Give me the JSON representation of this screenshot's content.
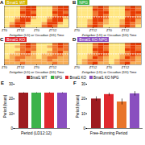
{
  "chart_data": [
    {
      "type": "heatmap",
      "panel_label": "A",
      "title": "Bmal1 WT",
      "color": "#d4b400",
      "xlabel": "Zeitgeber (LD) or Circadian (DD) Time",
      "bins": [
        0,
        4,
        8,
        12,
        16,
        20,
        24,
        28,
        32,
        36,
        40,
        44,
        48
      ],
      "xlim": [
        0,
        48
      ],
      "ylim": [
        0,
        8
      ],
      "dd_start": 4,
      "tick_labels": "x",
      "xticks": [
        {
          "value": 0,
          "label": "ZT0"
        },
        {
          "value": 12,
          "label": "ZT12"
        },
        {
          "value": 24,
          "label": "ZT0"
        },
        {
          "value": 36,
          "label": "ZT12"
        }
      ],
      "cells": [
        [
          0,
          0,
          0,
          2,
          3,
          3,
          0,
          0,
          0,
          2,
          3,
          3
        ],
        [
          0,
          0,
          0,
          2,
          3,
          3,
          0,
          0,
          0,
          2,
          3,
          3
        ],
        [
          0,
          0,
          0,
          3,
          3,
          2,
          0,
          0,
          0,
          3,
          3,
          2
        ],
        [
          0,
          0,
          0,
          2,
          3,
          3,
          0,
          0,
          0,
          2,
          3,
          3
        ],
        [
          0,
          0,
          1,
          3,
          3,
          1,
          0,
          0,
          1,
          3,
          3,
          1
        ],
        [
          0,
          0,
          2,
          3,
          3,
          0,
          0,
          0,
          2,
          3,
          3,
          0
        ],
        [
          0,
          1,
          3,
          3,
          1,
          0,
          0,
          1,
          3,
          3,
          1,
          0
        ],
        [
          0,
          2,
          3,
          2,
          0,
          0,
          0,
          2,
          3,
          2,
          0,
          0
        ]
      ]
    },
    {
      "type": "heatmap",
      "panel_label": "B",
      "title": "NPG",
      "color": "#3cb34a",
      "xlabel": "Zeitgeber (LD) or Circadian (DD) Time",
      "bins": [
        0,
        4,
        8,
        12,
        16,
        20,
        24,
        28,
        32,
        36,
        40,
        44,
        48
      ],
      "xlim": [
        0,
        48
      ],
      "ylim": [
        0,
        8
      ],
      "dd_start": 4,
      "tick_labels": "x",
      "xticks": [
        {
          "value": 0,
          "label": "ZT0"
        },
        {
          "value": 12,
          "label": "ZT12"
        },
        {
          "value": 24,
          "label": "ZT0"
        },
        {
          "value": 36,
          "label": "ZT12"
        }
      ],
      "cells": [
        [
          0,
          0,
          0,
          2,
          3,
          2,
          0,
          0,
          0,
          2,
          3,
          2
        ],
        [
          0,
          0,
          0,
          3,
          3,
          2,
          0,
          0,
          0,
          3,
          3,
          2
        ],
        [
          0,
          0,
          0,
          2,
          3,
          3,
          0,
          0,
          0,
          2,
          3,
          3
        ],
        [
          0,
          0,
          0,
          2,
          3,
          2,
          0,
          0,
          0,
          2,
          3,
          2
        ],
        [
          0,
          0,
          0,
          3,
          3,
          2,
          0,
          0,
          0,
          3,
          3,
          2
        ],
        [
          0,
          0,
          1,
          3,
          3,
          1,
          0,
          0,
          1,
          3,
          3,
          1
        ],
        [
          0,
          0,
          1,
          3,
          2,
          1,
          0,
          0,
          1,
          3,
          2,
          1
        ],
        [
          0,
          0,
          2,
          3,
          2,
          0,
          0,
          0,
          2,
          3,
          2,
          0
        ]
      ]
    },
    {
      "type": "heatmap",
      "panel_label": "C",
      "title": "Bmal1 KO",
      "color": "#e0282e",
      "xlabel": "Zeitgeber (LD) or Circadian (DD) Time",
      "bins": [
        0,
        4,
        8,
        12,
        16,
        20,
        24,
        28,
        32,
        36,
        40,
        44,
        48
      ],
      "xlim": [
        0,
        48
      ],
      "ylim": [
        0,
        8
      ],
      "dd_start": 4,
      "tick_labels": "x",
      "xticks": [
        {
          "value": 0,
          "label": "ZT0"
        },
        {
          "value": 12,
          "label": "ZT12"
        },
        {
          "value": 24,
          "label": "ZT0"
        },
        {
          "value": 36,
          "label": "ZT12"
        }
      ],
      "cells": [
        [
          0,
          0,
          0,
          2,
          3,
          2,
          0,
          0,
          0,
          2,
          3,
          2
        ],
        [
          0,
          0,
          1,
          2,
          3,
          2,
          0,
          0,
          1,
          2,
          3,
          2
        ],
        [
          0,
          0,
          0,
          2,
          2,
          2,
          0,
          0,
          0,
          2,
          2,
          2
        ],
        [
          0,
          0,
          1,
          2,
          3,
          1,
          0,
          0,
          1,
          2,
          3,
          1
        ],
        [
          0,
          1,
          1,
          2,
          2,
          1,
          0,
          1,
          1,
          2,
          2,
          1
        ],
        [
          0,
          1,
          2,
          2,
          1,
          1,
          0,
          1,
          2,
          2,
          1,
          1
        ],
        [
          1,
          1,
          2,
          1,
          1,
          1,
          1,
          1,
          2,
          1,
          1,
          1
        ],
        [
          1,
          1,
          1,
          2,
          1,
          1,
          1,
          1,
          1,
          2,
          1,
          1
        ]
      ]
    },
    {
      "type": "heatmap",
      "panel_label": "D",
      "title": "Bmal1 KO NPG",
      "color": "#8a4fbf",
      "xlabel": "Zeitgeber (LD) or Circadian (DD) Time",
      "bins": [
        0,
        4,
        8,
        12,
        16,
        20,
        24,
        28,
        32,
        36,
        40,
        44,
        48
      ],
      "xlim": [
        0,
        48
      ],
      "ylim": [
        0,
        8
      ],
      "dd_start": 4,
      "tick_labels": "x",
      "xticks": [
        {
          "value": 0,
          "label": "ZT0"
        },
        {
          "value": 12,
          "label": "ZT12"
        },
        {
          "value": 24,
          "label": "ZT0"
        },
        {
          "value": 36,
          "label": "ZT12"
        }
      ],
      "cells": [
        [
          0,
          0,
          0,
          2,
          3,
          3,
          0,
          0,
          0,
          2,
          3,
          3
        ],
        [
          0,
          0,
          0,
          2,
          3,
          2,
          0,
          0,
          0,
          2,
          3,
          2
        ],
        [
          0,
          0,
          0,
          3,
          3,
          2,
          0,
          0,
          0,
          3,
          3,
          2
        ],
        [
          0,
          0,
          0,
          2,
          3,
          3,
          0,
          0,
          0,
          2,
          3,
          3
        ],
        [
          0,
          0,
          1,
          2,
          3,
          2,
          0,
          0,
          1,
          2,
          3,
          2
        ],
        [
          0,
          0,
          1,
          3,
          2,
          1,
          0,
          0,
          1,
          3,
          2,
          1
        ],
        [
          0,
          1,
          2,
          2,
          2,
          1,
          0,
          1,
          2,
          2,
          2,
          1
        ],
        [
          0,
          1,
          2,
          3,
          1,
          1,
          0,
          1,
          2,
          3,
          1,
          1
        ]
      ]
    },
    {
      "type": "bar",
      "panel_label": "E",
      "title": "Period (LD12:12)",
      "ylabel": "Period (hours)",
      "categories": [
        "Bmal1 WT",
        "NPG",
        "Bmal1 KO",
        "Bmal1 KO NPG"
      ],
      "values": [
        24,
        24,
        24,
        24
      ],
      "errors": [
        0.3,
        0.3,
        0.3,
        0.3
      ],
      "colors": [
        "#9e1b20",
        "#3cb34a",
        "#e0282e",
        "#8a4fbf"
      ],
      "ylim": [
        0,
        30
      ],
      "yticks": [
        0,
        10,
        20,
        30
      ],
      "tick_labels": "y",
      "legend": "top"
    },
    {
      "type": "bar",
      "panel_label": "F",
      "title": "Free-Running Period",
      "ylabel": "Period (hours)",
      "categories": [
        "Bmal1 WT",
        "NPG",
        "Bmal1 KO",
        "Bmal1 KO NPG"
      ],
      "values": [
        20,
        23,
        18,
        23.5
      ],
      "errors": [
        1.5,
        1,
        2,
        1.5
      ],
      "colors": [
        "#9e1b20",
        "#e0282e",
        "#e8742a",
        "#8a4fbf"
      ],
      "ylim": [
        0,
        30
      ],
      "yticks": [
        0,
        10,
        20,
        30
      ],
      "tick_labels": "y"
    }
  ]
}
